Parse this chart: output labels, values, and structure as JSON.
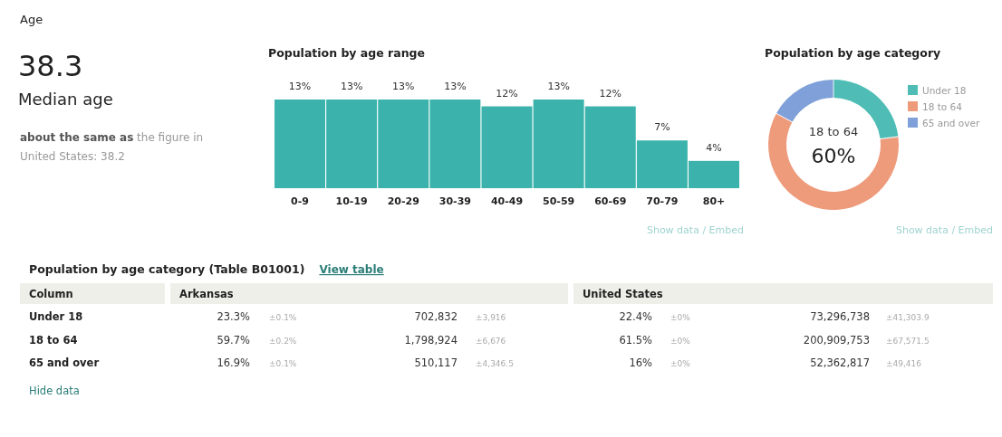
{
  "chart_data": [
    {
      "type": "other",
      "title": "Age",
      "annotations": [
        "38.3",
        "Median age",
        "about the same as",
        "the figure in",
        "United States: 38.2"
      ]
    },
    {
      "type": "bar",
      "title": "Population by age range",
      "categories": [
        "0-9",
        "10-19",
        "20-29",
        "30-39",
        "40-49",
        "50-59",
        "60-69",
        "70-79",
        "80+"
      ],
      "values": [
        13,
        13,
        13,
        13,
        12,
        13,
        12,
        7,
        4
      ],
      "color": "#3bb3ac",
      "value_labels": [
        "13%",
        "13%",
        "13%",
        "13%",
        "12%",
        "13%",
        "12%",
        "7%",
        "4%"
      ],
      "annotations": [
        "Show data / Embed"
      ]
    },
    {
      "type": "donut",
      "title": "Population by age category",
      "categories": [
        "Under 18",
        "18 to 64",
        "65 and over"
      ],
      "values": [
        23,
        60,
        17
      ],
      "colors": [
        "#4fbdb5",
        "#ee9b7c",
        "#7fa0d8"
      ],
      "value_labels": [
        null,
        "60%",
        null
      ],
      "legend": "right",
      "annotations": [
        "Show data / Embed"
      ]
    },
    {
      "type": "other",
      "title": "Population by age category (Table B01001)",
      "annotations": [
        "View table",
        "Column",
        "Arkansas",
        "United States",
        "Under 18",
        "23.3%",
        "±0.1%",
        "702,832",
        "±3,916",
        "22.4%",
        "±0%",
        "73,296,738",
        "±41,303.9",
        "18 to 64",
        "59.7%",
        "±0.2%",
        "1,798,924",
        "±6,676",
        "61.5%",
        "±0%",
        "200,909,753",
        "±67,571.5",
        "65 and over",
        "16.9%",
        "±0.1%",
        "510,117",
        "±4,346.5",
        "16%",
        "±0%",
        "52,362,817",
        "±49,416",
        "Hide data"
      ]
    }
  ]
}
